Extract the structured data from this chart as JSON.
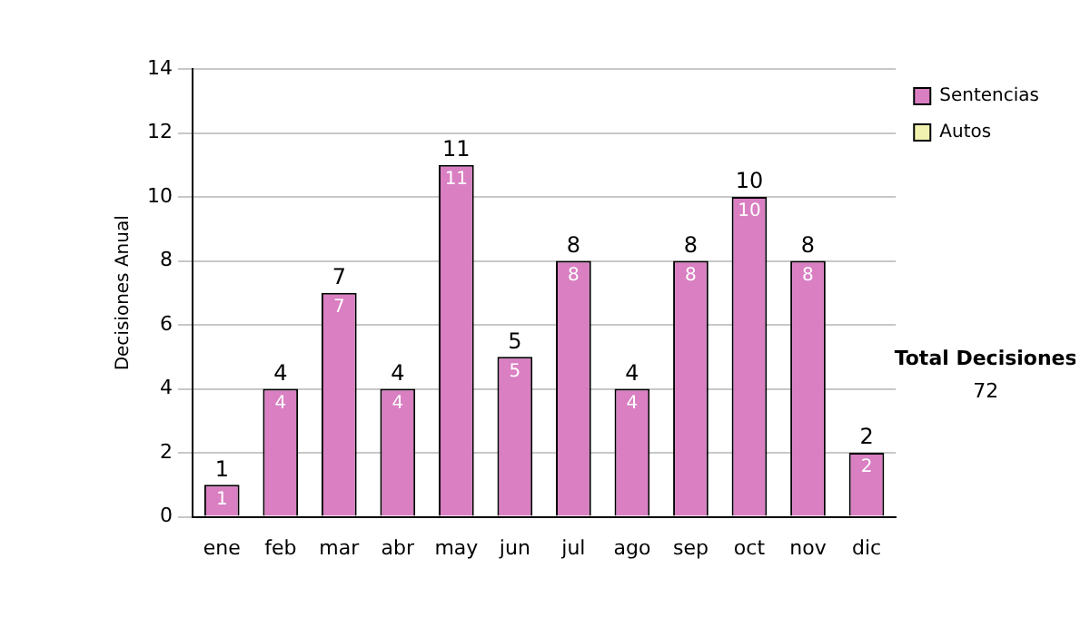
{
  "chart_data": {
    "type": "bar",
    "ylabel": "Decisiones Anual",
    "categories": [
      "ene",
      "feb",
      "mar",
      "abr",
      "may",
      "jun",
      "jul",
      "ago",
      "sep",
      "oct",
      "nov",
      "dic"
    ],
    "series": [
      {
        "name": "Sentencias",
        "color": "#d97fc2",
        "values": [
          1,
          4,
          7,
          4,
          11,
          5,
          8,
          4,
          8,
          10,
          8,
          2
        ],
        "value_labels": [
          "1",
          "4",
          "7",
          "4",
          "11",
          "5",
          "8",
          "4",
          "8",
          "10",
          "8",
          "2"
        ]
      },
      {
        "name": "Autos",
        "color": "#f2f2b0",
        "values": [
          0,
          0,
          0,
          0,
          0,
          0,
          0,
          0,
          0,
          0,
          0,
          0
        ]
      }
    ],
    "stacked": true,
    "totals": [
      "1",
      "4",
      "7",
      "4",
      "11",
      "5",
      "8",
      "4",
      "8",
      "10",
      "8",
      "2"
    ],
    "ylim": [
      0,
      14
    ],
    "yticks": [
      0,
      2,
      4,
      6,
      8,
      10,
      12,
      14
    ],
    "grid": "y",
    "legend": "right",
    "annotations": [
      "Total Decisiones",
      "72"
    ]
  }
}
